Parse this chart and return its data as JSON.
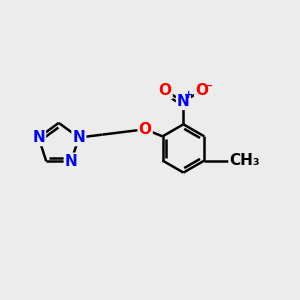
{
  "bg_color": "#ececec",
  "bond_color": "#000000",
  "bond_width": 1.8,
  "dbo": 0.12,
  "atom_colors": {
    "N": "#0000ff",
    "O": "#ff0000",
    "C": "#000000"
  },
  "fs": 11,
  "fs_s": 8,
  "fig_width": 3.0,
  "fig_height": 3.0
}
